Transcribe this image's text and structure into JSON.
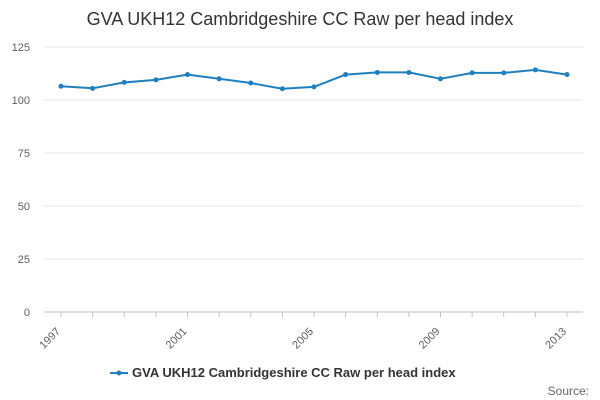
{
  "chart_data": {
    "type": "line",
    "title": "GVA UKH12 Cambridgeshire CC Raw per head index",
    "x": [
      1997,
      1998,
      1999,
      2000,
      2001,
      2002,
      2003,
      2004,
      2005,
      2006,
      2007,
      2008,
      2009,
      2010,
      2011,
      2012,
      2013
    ],
    "x_tick_labels": [
      "1997",
      "2001",
      "2005",
      "2009",
      "2013"
    ],
    "y_ticks": [
      0,
      25,
      50,
      75,
      100,
      125
    ],
    "ylim": [
      0,
      125
    ],
    "grid": true,
    "legend_position": "bottom",
    "series": [
      {
        "name": "GVA UKH12 Cambridgeshire CC Raw per head index",
        "color": "#1f7fbf",
        "values": [
          106.5,
          105.5,
          108.3,
          109.5,
          112.0,
          110.0,
          108.0,
          105.3,
          106.2,
          112.0,
          113.0,
          113.0,
          110.0,
          112.8,
          112.8,
          114.2,
          112.0
        ]
      }
    ]
  },
  "footer": {
    "source_label": "Source:"
  }
}
